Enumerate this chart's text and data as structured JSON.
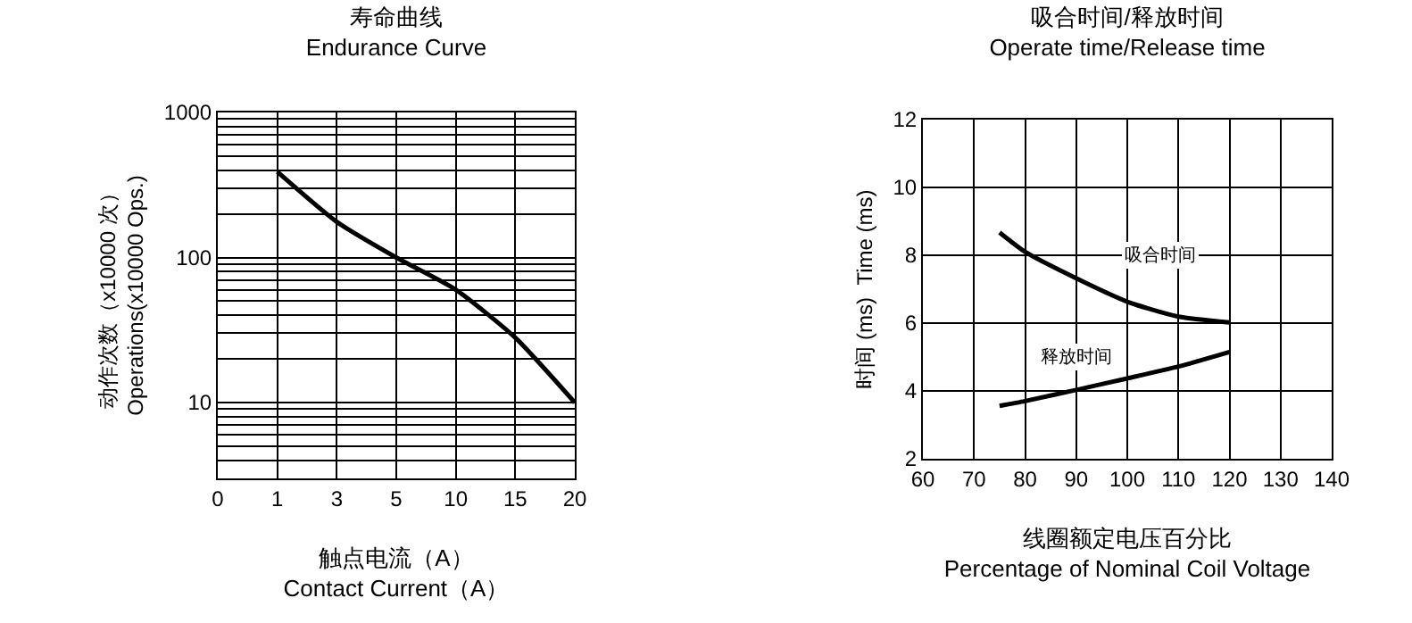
{
  "chart_data": [
    {
      "type": "line",
      "title": "寿命曲线",
      "subtitle": "Endurance Curve",
      "xlabel": "触点电流（A）\nContact Current（A）",
      "ylabel": "动作次数（x10000 次）\nOperations(x10000 Ops.)",
      "categories": [
        "0",
        "1",
        "3",
        "5",
        "10",
        "15",
        "20"
      ],
      "values": [
        null,
        390,
        176,
        100,
        60,
        28,
        10
      ],
      "color": "#000000",
      "log": "y",
      "ylim": [
        3,
        1000
      ],
      "yticks": [
        {
          "value": 3,
          "label": null
        },
        {
          "value": 4,
          "label": null
        },
        {
          "value": 5,
          "label": null
        },
        {
          "value": 6,
          "label": null
        },
        {
          "value": 7,
          "label": null
        },
        {
          "value": 8,
          "label": null
        },
        {
          "value": 9,
          "label": null
        },
        10,
        {
          "value": 20,
          "label": null
        },
        {
          "value": 30,
          "label": null
        },
        {
          "value": 40,
          "label": null
        },
        {
          "value": 50,
          "label": null
        },
        {
          "value": 60,
          "label": null
        },
        {
          "value": 70,
          "label": null
        },
        {
          "value": 80,
          "label": null
        },
        {
          "value": 90,
          "label": null
        },
        100,
        {
          "value": 200,
          "label": null
        },
        {
          "value": 300,
          "label": null
        },
        {
          "value": 400,
          "label": null
        },
        {
          "value": 500,
          "label": null
        },
        {
          "value": 600,
          "label": null
        },
        {
          "value": 700,
          "label": null
        },
        {
          "value": 800,
          "label": null
        },
        {
          "value": 900,
          "label": null
        },
        1000
      ],
      "grid": true,
      "legend": false,
      "marker": "none",
      "line_style": "solid"
    },
    {
      "type": "line",
      "title": "吸合时间/释放时间",
      "subtitle": "Operate time/Release time",
      "xlabel": "线圈额定电压百分比\nPercentage of Nominal Coil Voltage",
      "ylabel": "时间 (ms)  Time (ms)",
      "x": [
        75,
        80,
        90,
        100,
        110,
        120
      ],
      "series": [
        {
          "name": "吸合时间",
          "color": "#000000",
          "values": [
            8.67,
            8.1,
            7.32,
            6.63,
            6.19,
            6.02
          ]
        },
        {
          "name": "释放时间",
          "color": "#000000",
          "values": [
            3.56,
            3.7,
            4.03,
            4.37,
            4.72,
            5.15
          ]
        }
      ],
      "xlim": [
        60,
        140
      ],
      "xticks": [
        60,
        70,
        80,
        90,
        100,
        110,
        120,
        130,
        140
      ],
      "ylim": [
        2,
        12
      ],
      "yticks": [
        2,
        4,
        6,
        8,
        10,
        12
      ],
      "grid": true,
      "legend": false,
      "marker": "none",
      "line_style": "solid"
    }
  ]
}
